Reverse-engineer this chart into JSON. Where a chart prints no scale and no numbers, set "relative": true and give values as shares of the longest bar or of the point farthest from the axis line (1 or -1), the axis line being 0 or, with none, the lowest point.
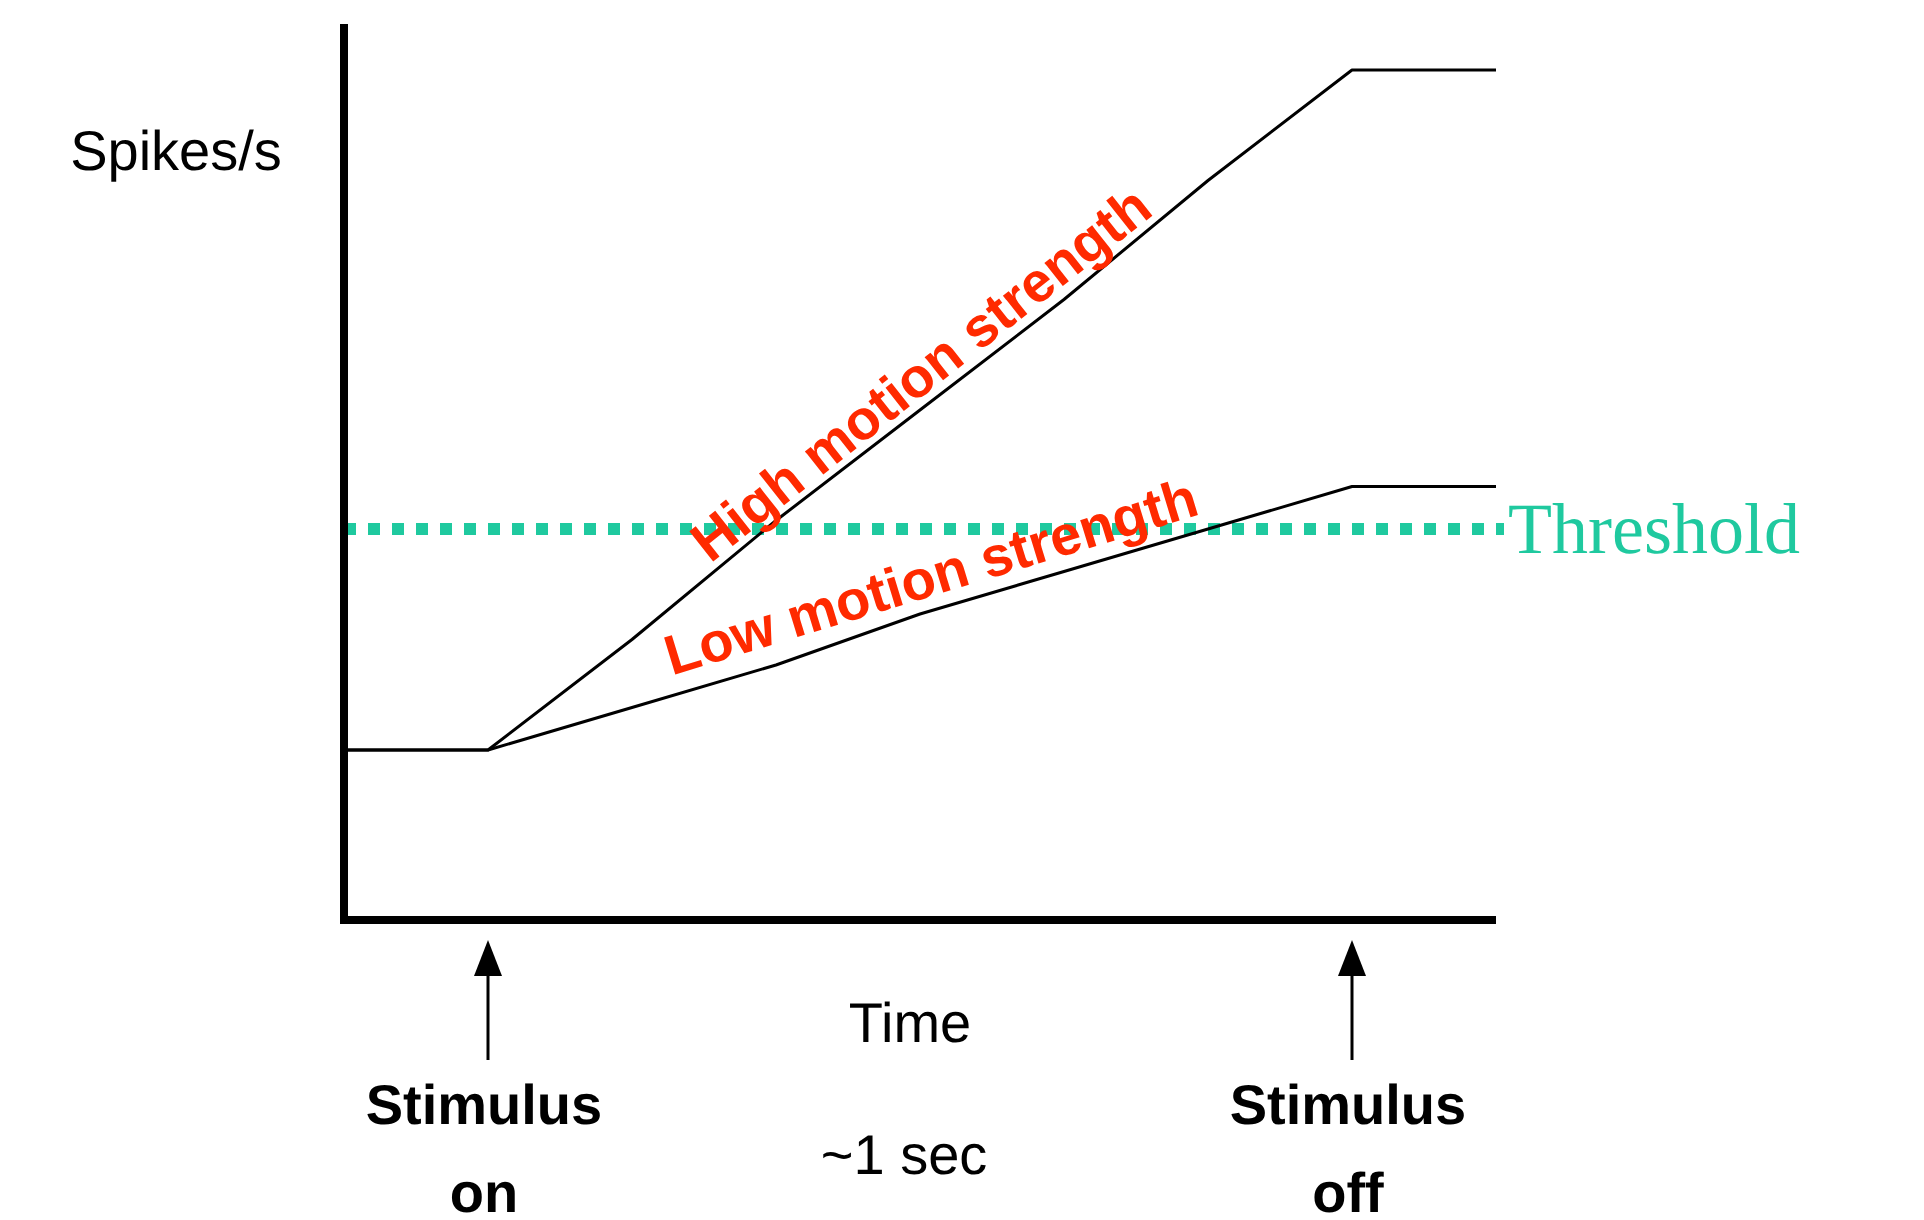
{
  "chart_data": {
    "type": "line",
    "relative": true,
    "ylabel": "Spikes/s",
    "xlabel": "Time",
    "annotations": [
      "Stimulus on",
      "~1 sec",
      "Stimulus off"
    ],
    "categories": [
      null,
      null,
      null,
      null,
      null,
      null,
      null,
      null,
      null
    ],
    "marker": "none",
    "line_style": "solid",
    "series": [
      {
        "name": "High motion strength",
        "color": "#000000",
        "values": [
          0.2,
          0.2,
          0.33,
          0.47,
          0.6,
          0.73,
          0.87,
          1,
          1
        ]
      },
      {
        "name": "Low motion strength",
        "color": "#000000",
        "values": [
          0.2,
          0.2,
          0.25,
          0.3,
          0.36,
          0.41,
          0.46,
          0.51,
          0.51
        ]
      }
    ],
    "ref_lines": [
      {
        "axis": "y",
        "value": 0.46,
        "label": "Threshold",
        "color": "#1fc99f",
        "line_style": "dotted"
      }
    ]
  }
}
